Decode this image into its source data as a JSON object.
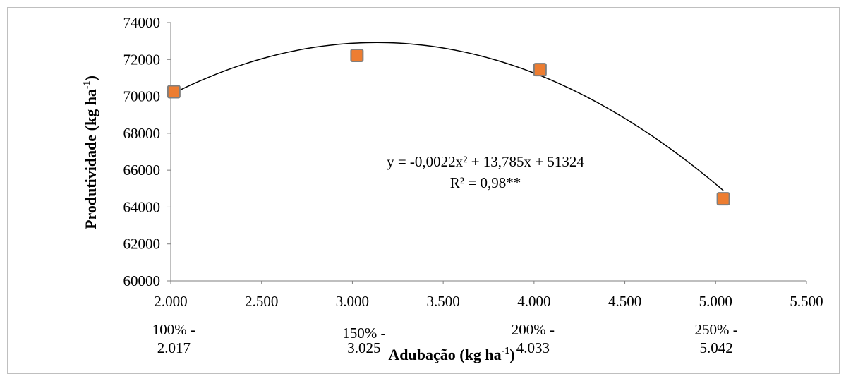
{
  "chart_data": {
    "type": "scatter",
    "title": "",
    "xlabel": "Adubação (kg ha",
    "xlabel_sup": "-1",
    "xlabel_tail": ")",
    "ylabel": "Produtividade (kg ha",
    "ylabel_sup": "-1",
    "ylabel_tail": ")",
    "xlim": [
      2000,
      5500
    ],
    "ylim": [
      60000,
      74000
    ],
    "x_ticks": [
      "2.000",
      "2.500",
      "3.000",
      "3.500",
      "4.000",
      "4.500",
      "5.000",
      "5.500"
    ],
    "x_tick_values": [
      2000,
      2500,
      3000,
      3500,
      4000,
      4500,
      5000,
      5500
    ],
    "y_ticks": [
      "60000",
      "62000",
      "64000",
      "66000",
      "68000",
      "70000",
      "72000",
      "74000"
    ],
    "y_tick_values": [
      60000,
      62000,
      64000,
      66000,
      68000,
      70000,
      72000,
      74000
    ],
    "points": [
      {
        "x": 2017,
        "y": 70250
      },
      {
        "x": 3025,
        "y": 72220
      },
      {
        "x": 4033,
        "y": 71450
      },
      {
        "x": 5042,
        "y": 64450
      }
    ],
    "category_labels": [
      {
        "line1": "100% -",
        "line2": "2.017",
        "x": 2017
      },
      {
        "line1": "150% -",
        "line2": "3.025",
        "x": 3025
      },
      {
        "line1": "200% -",
        "line2": "4.033",
        "x": 4033
      },
      {
        "line1": "250% -",
        "line2": "5.042",
        "x": 5042
      }
    ],
    "trendline": {
      "a": -0.0022,
      "b": 13.785,
      "c": 51324
    },
    "equation": "y = -0,0022x² + 13,785x + 51324",
    "r2": "R² = 0,98**",
    "marker_color": "#ED7D31",
    "marker_edge_color": "#7F7F7F",
    "grid": false
  }
}
